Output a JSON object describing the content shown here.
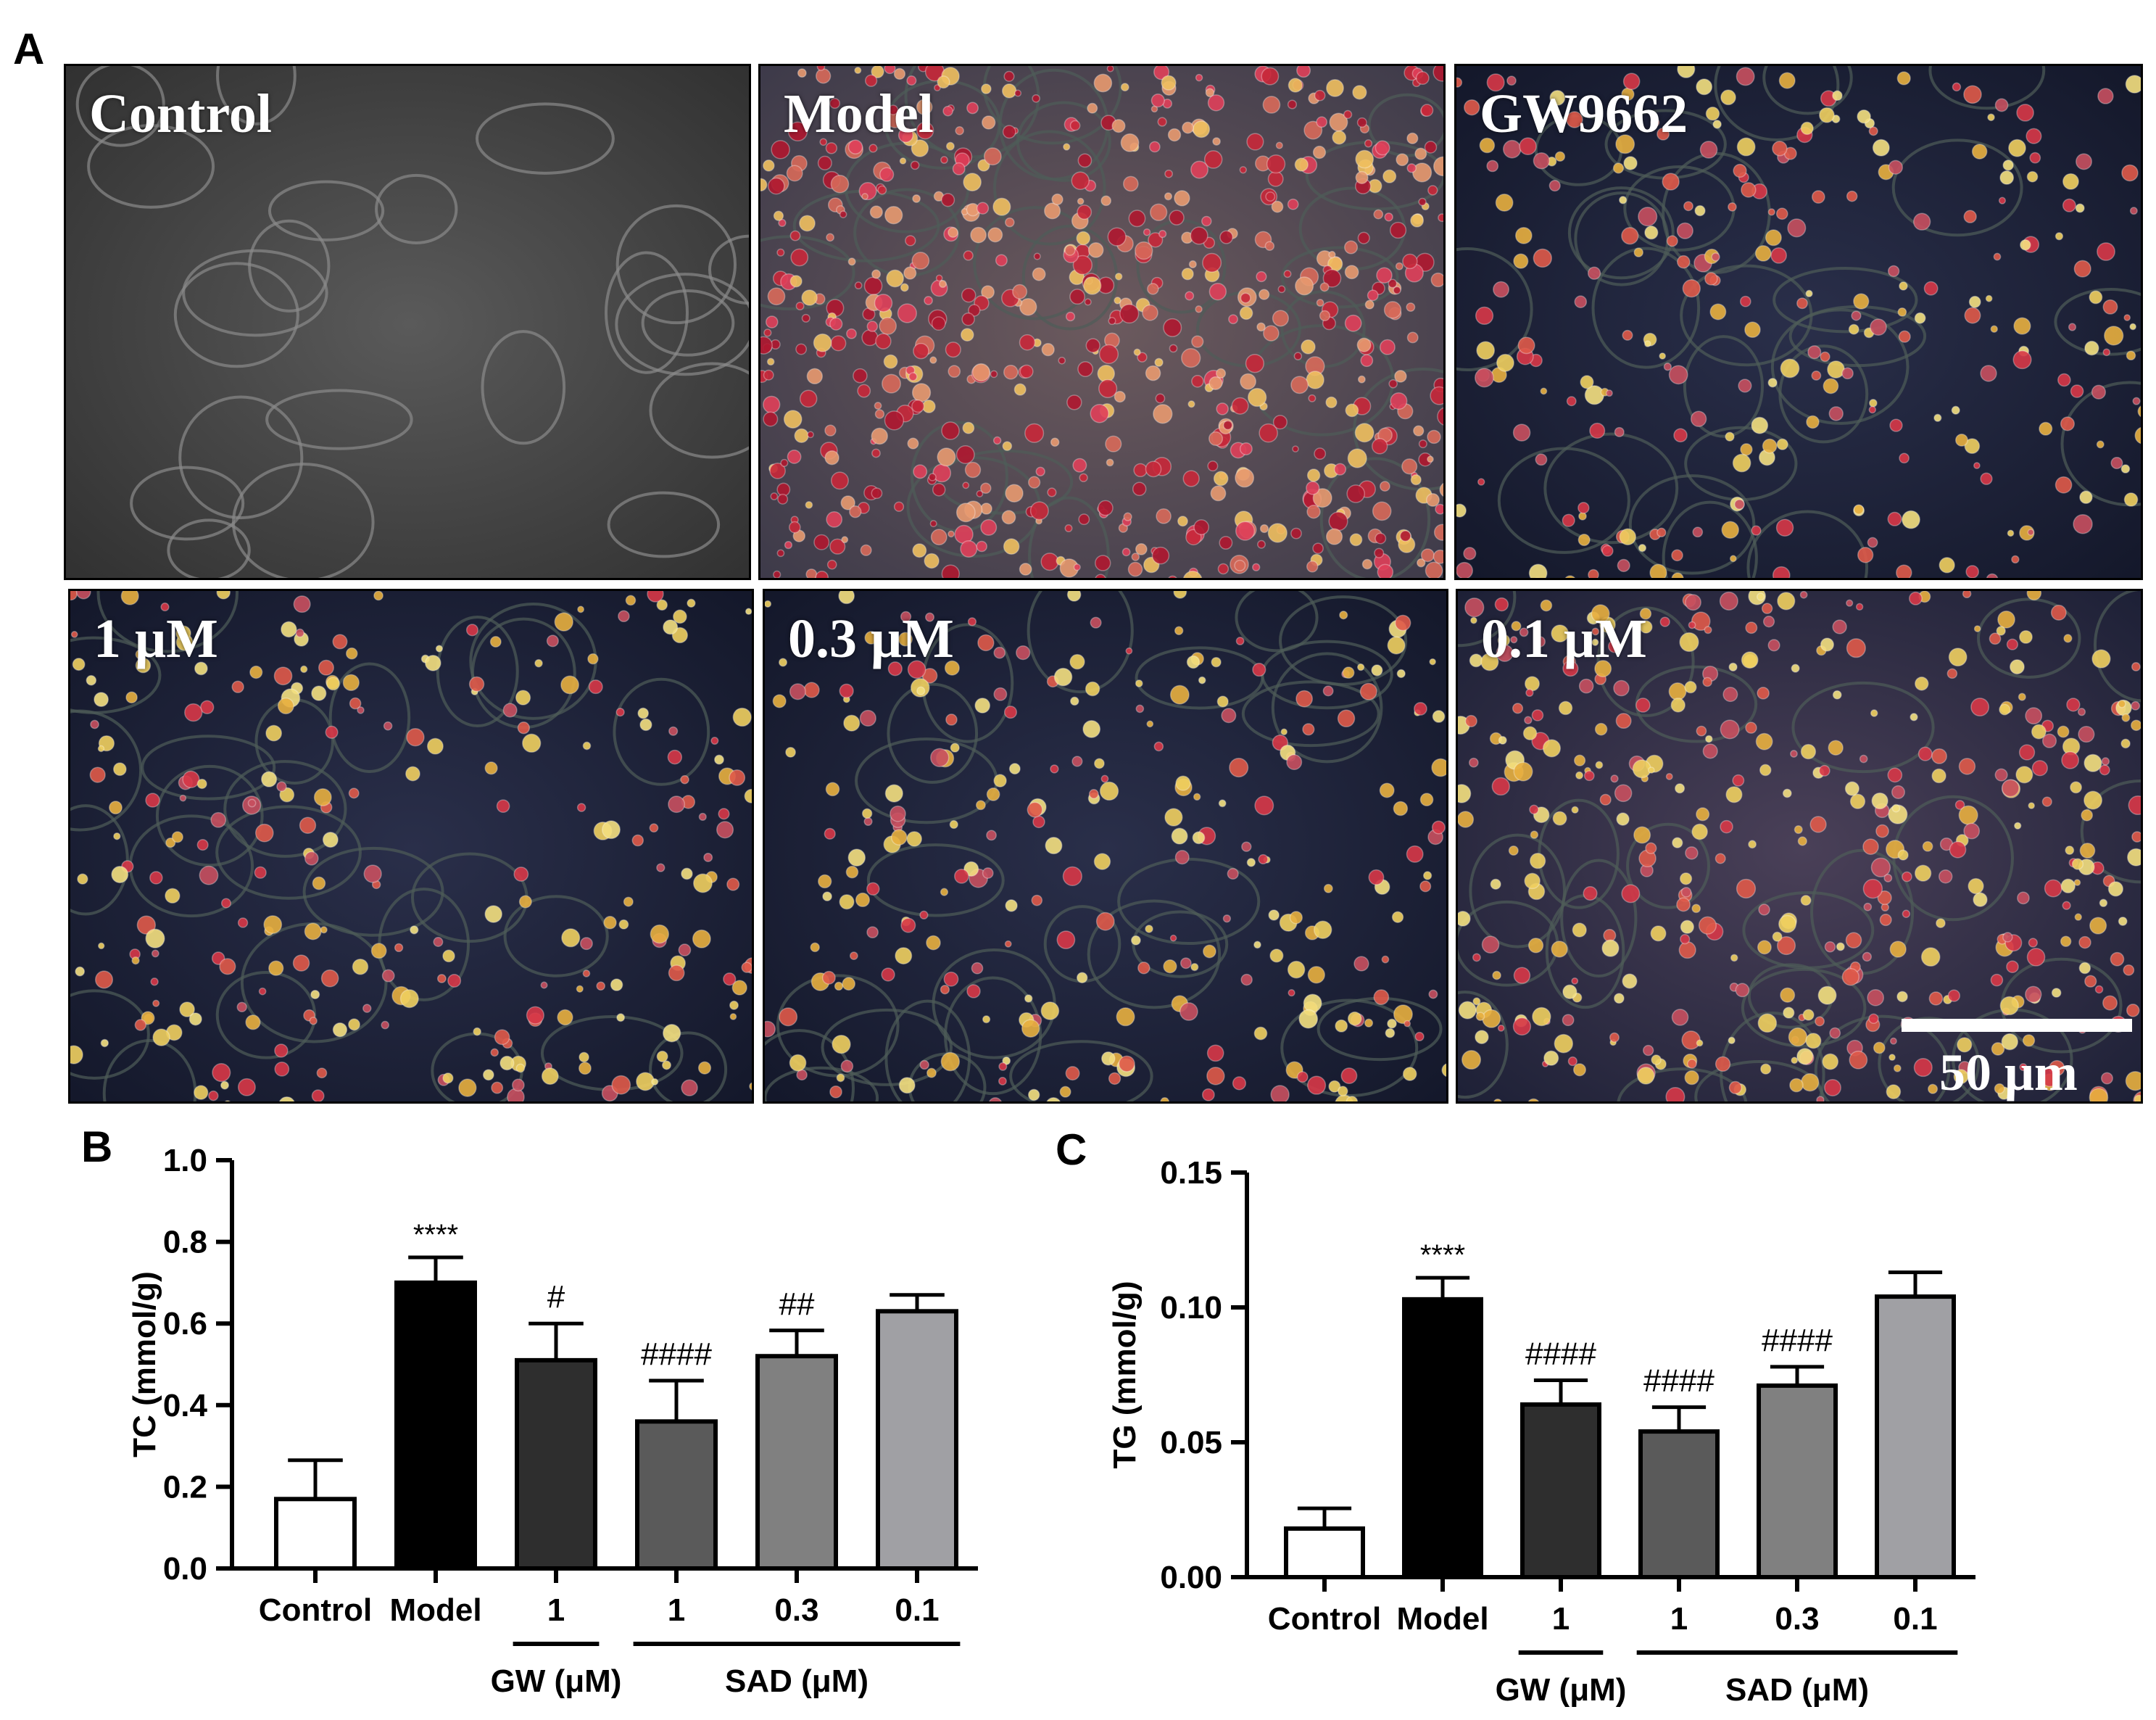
{
  "panels": {
    "a_letter": "A",
    "b_letter": "B",
    "c_letter": "C"
  },
  "micrographs": [
    {
      "label": "Control",
      "style": "gray"
    },
    {
      "label": "Model",
      "style": "dense"
    },
    {
      "label": "GW9662",
      "style": "dark"
    },
    {
      "label": "1 μM",
      "style": "dark"
    },
    {
      "label": "0.3 μM",
      "style": "dark"
    },
    {
      "label": "0.1 μM",
      "style": "mixed"
    }
  ],
  "scale_bar": {
    "label": "50 μm"
  },
  "chart_data": [
    {
      "type": "bar",
      "panel": "B",
      "ylabel": "TC (mmol/g)",
      "ylim": [
        0,
        1.0
      ],
      "yticks": [
        "0.0",
        "0.2",
        "0.4",
        "0.6",
        "0.8",
        "1.0"
      ],
      "categories": [
        "Control",
        "Model",
        "1",
        "1",
        "0.3",
        "0.1"
      ],
      "values": [
        0.17,
        0.7,
        0.51,
        0.36,
        0.52,
        0.63
      ],
      "errors": [
        0.095,
        0.062,
        0.09,
        0.1,
        0.063,
        0.04
      ],
      "annotations": [
        "",
        "****",
        "#",
        "####",
        "##",
        ""
      ],
      "fills": [
        "#ffffff",
        "#000000",
        "#2e2e2e",
        "#5a5a5a",
        "#808080",
        "#a0a0a4"
      ],
      "groups": [
        {
          "label": "GW (μM)",
          "from": 2,
          "to": 2
        },
        {
          "label": "SAD (μM)",
          "from": 3,
          "to": 5
        }
      ]
    },
    {
      "type": "bar",
      "panel": "C",
      "ylabel": "TG (mmol/g)",
      "ylim": [
        0,
        0.15
      ],
      "yticks": [
        "0.00",
        "0.05",
        "0.10",
        "0.15"
      ],
      "categories": [
        "Control",
        "Model",
        "1",
        "1",
        "0.3",
        "0.1"
      ],
      "values": [
        0.018,
        0.103,
        0.064,
        0.054,
        0.071,
        0.104
      ],
      "errors": [
        0.0075,
        0.008,
        0.009,
        0.009,
        0.007,
        0.009
      ],
      "annotations": [
        "",
        "****",
        "####",
        "####",
        "####",
        ""
      ],
      "fills": [
        "#ffffff",
        "#000000",
        "#2e2e2e",
        "#5a5a5a",
        "#808080",
        "#a0a0a4"
      ],
      "groups": [
        {
          "label": "GW (μM)",
          "from": 2,
          "to": 2
        },
        {
          "label": "SAD (μM)",
          "from": 3,
          "to": 5
        }
      ]
    }
  ]
}
